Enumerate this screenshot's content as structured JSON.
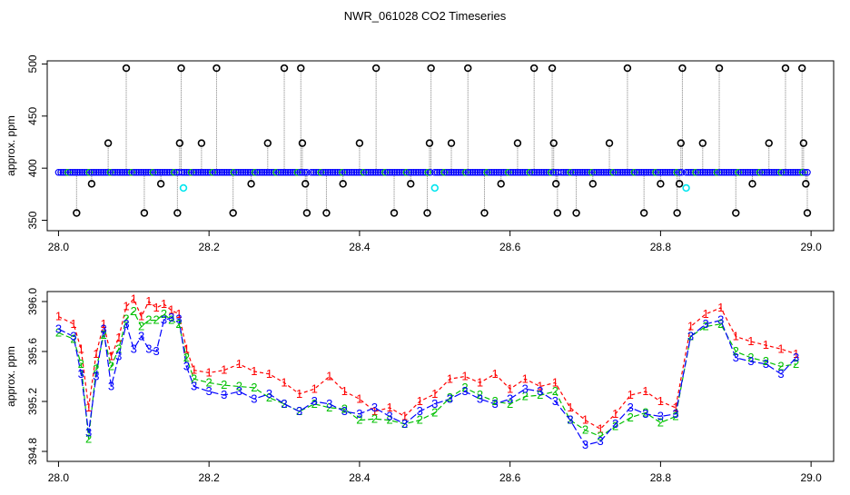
{
  "title": "NWR_061028  CO2 Timeseries",
  "colors": {
    "frame": "#000000",
    "line": "#808080",
    "series1": "#ff0000",
    "series2": "#00c000",
    "series3": "#0000ff",
    "blue_points": "#0000ff",
    "green_points": "#00c000",
    "flag_points": "#000000",
    "cyan_points": "#00e5ee"
  },
  "chart_data": [
    {
      "type": "scatter",
      "title": "NWR_061028  CO2 Timeseries",
      "ylabel": "approx. ppm",
      "xlim": [
        27.985,
        29.03
      ],
      "ylim": [
        340,
        503
      ],
      "xticks": [
        "28.0",
        "28.2",
        "28.4",
        "28.6",
        "28.8",
        "29.0"
      ],
      "yticks": [
        "350",
        "400",
        "450",
        "500"
      ],
      "grid": false,
      "baseline": [
        {
          "x": 28.0,
          "y": 396
        },
        {
          "x": 28.16,
          "y": 396
        },
        {
          "x": 28.164,
          "y": 396
        },
        {
          "x": 28.33,
          "y": 396
        },
        {
          "x": 28.336,
          "y": 396
        },
        {
          "x": 28.494,
          "y": 396
        },
        {
          "x": 28.5,
          "y": 396
        },
        {
          "x": 28.664,
          "y": 396
        },
        {
          "x": 28.668,
          "y": 396
        },
        {
          "x": 28.828,
          "y": 396
        },
        {
          "x": 28.834,
          "y": 396
        },
        {
          "x": 28.995,
          "y": 396
        }
      ],
      "flagged": [
        {
          "x": 28.024,
          "y": 357
        },
        {
          "x": 28.044,
          "y": 385
        },
        {
          "x": 28.066,
          "y": 424
        },
        {
          "x": 28.09,
          "y": 496
        },
        {
          "x": 28.114,
          "y": 357
        },
        {
          "x": 28.136,
          "y": 385
        },
        {
          "x": 28.158,
          "y": 357
        },
        {
          "x": 28.161,
          "y": 424
        },
        {
          "x": 28.163,
          "y": 496
        },
        {
          "x": 28.19,
          "y": 424
        },
        {
          "x": 28.21,
          "y": 496
        },
        {
          "x": 28.232,
          "y": 357
        },
        {
          "x": 28.256,
          "y": 385
        },
        {
          "x": 28.278,
          "y": 424
        },
        {
          "x": 28.3,
          "y": 496
        },
        {
          "x": 28.322,
          "y": 496
        },
        {
          "x": 28.324,
          "y": 424
        },
        {
          "x": 28.328,
          "y": 385
        },
        {
          "x": 28.33,
          "y": 357
        },
        {
          "x": 28.356,
          "y": 357
        },
        {
          "x": 28.378,
          "y": 385
        },
        {
          "x": 28.4,
          "y": 424
        },
        {
          "x": 28.422,
          "y": 496
        },
        {
          "x": 28.446,
          "y": 357
        },
        {
          "x": 28.468,
          "y": 385
        },
        {
          "x": 28.49,
          "y": 357
        },
        {
          "x": 28.493,
          "y": 424
        },
        {
          "x": 28.495,
          "y": 496
        },
        {
          "x": 28.522,
          "y": 424
        },
        {
          "x": 28.544,
          "y": 496
        },
        {
          "x": 28.566,
          "y": 357
        },
        {
          "x": 28.588,
          "y": 385
        },
        {
          "x": 28.61,
          "y": 424
        },
        {
          "x": 28.632,
          "y": 496
        },
        {
          "x": 28.656,
          "y": 496
        },
        {
          "x": 28.658,
          "y": 424
        },
        {
          "x": 28.661,
          "y": 385
        },
        {
          "x": 28.663,
          "y": 357
        },
        {
          "x": 28.688,
          "y": 357
        },
        {
          "x": 28.71,
          "y": 385
        },
        {
          "x": 28.732,
          "y": 424
        },
        {
          "x": 28.756,
          "y": 496
        },
        {
          "x": 28.778,
          "y": 357
        },
        {
          "x": 28.8,
          "y": 385
        },
        {
          "x": 28.822,
          "y": 357
        },
        {
          "x": 28.825,
          "y": 385
        },
        {
          "x": 28.827,
          "y": 424
        },
        {
          "x": 28.829,
          "y": 496
        },
        {
          "x": 28.856,
          "y": 424
        },
        {
          "x": 28.878,
          "y": 496
        },
        {
          "x": 28.9,
          "y": 357
        },
        {
          "x": 28.922,
          "y": 385
        },
        {
          "x": 28.944,
          "y": 424
        },
        {
          "x": 28.966,
          "y": 496
        },
        {
          "x": 28.988,
          "y": 496
        },
        {
          "x": 28.99,
          "y": 424
        },
        {
          "x": 28.993,
          "y": 385
        },
        {
          "x": 28.995,
          "y": 357
        }
      ],
      "cyan": [
        {
          "x": 28.166,
          "y": 381
        },
        {
          "x": 28.5,
          "y": 381
        },
        {
          "x": 28.834,
          "y": 381
        }
      ]
    },
    {
      "type": "line",
      "ylabel": "approx. ppm",
      "xlim": [
        27.985,
        29.03
      ],
      "ylim": [
        394.72,
        396.08
      ],
      "xticks": [
        "28.0",
        "28.2",
        "28.4",
        "28.6",
        "28.8",
        "29.0"
      ],
      "yticks": [
        "394.8",
        "395.2",
        "395.6",
        "396.0"
      ],
      "grid": false,
      "x": [
        28.0,
        28.02,
        28.03,
        28.04,
        28.05,
        28.06,
        28.07,
        28.08,
        28.09,
        28.1,
        28.11,
        28.12,
        28.13,
        28.14,
        28.15,
        28.16,
        28.17,
        28.18,
        28.2,
        28.22,
        28.24,
        28.26,
        28.28,
        28.3,
        28.32,
        28.34,
        28.36,
        28.38,
        28.4,
        28.42,
        28.44,
        28.46,
        28.48,
        28.5,
        28.52,
        28.54,
        28.56,
        28.58,
        28.6,
        28.62,
        28.64,
        28.66,
        28.68,
        28.7,
        28.72,
        28.74,
        28.76,
        28.78,
        28.8,
        28.82,
        28.84,
        28.86,
        28.88,
        28.9,
        28.92,
        28.94,
        28.96,
        28.98
      ],
      "series": [
        {
          "name": "1",
          "values": [
            395.88,
            395.82,
            395.62,
            395.15,
            395.58,
            395.82,
            395.56,
            395.71,
            395.96,
            396.02,
            395.88,
            396.0,
            395.95,
            395.98,
            395.93,
            395.9,
            395.62,
            395.45,
            395.43,
            395.45,
            395.5,
            395.44,
            395.42,
            395.35,
            395.26,
            395.3,
            395.4,
            395.28,
            395.22,
            395.12,
            395.15,
            395.08,
            395.2,
            395.26,
            395.38,
            395.4,
            395.35,
            395.42,
            395.3,
            395.38,
            395.32,
            395.35,
            395.15,
            395.05,
            394.98,
            395.1,
            395.25,
            395.28,
            395.2,
            395.15,
            395.8,
            395.9,
            395.95,
            395.72,
            395.68,
            395.65,
            395.62,
            395.58
          ]
        },
        {
          "name": "2",
          "values": [
            395.75,
            395.7,
            395.5,
            394.9,
            395.46,
            395.73,
            395.48,
            395.62,
            395.86,
            395.92,
            395.8,
            395.85,
            395.85,
            395.9,
            395.85,
            395.82,
            395.55,
            395.38,
            395.35,
            395.33,
            395.32,
            395.31,
            395.23,
            395.18,
            395.12,
            395.18,
            395.15,
            395.14,
            395.05,
            395.06,
            395.05,
            395.02,
            395.05,
            395.11,
            395.23,
            395.31,
            395.25,
            395.2,
            395.18,
            395.24,
            395.25,
            395.28,
            395.05,
            394.97,
            394.92,
            395.0,
            395.07,
            395.11,
            395.03,
            395.08,
            395.72,
            395.8,
            395.82,
            395.6,
            395.55,
            395.52,
            395.48,
            395.5
          ]
        },
        {
          "name": "3",
          "values": [
            395.78,
            395.72,
            395.42,
            394.95,
            395.4,
            395.78,
            395.32,
            395.56,
            395.82,
            395.62,
            395.72,
            395.62,
            395.6,
            395.85,
            395.87,
            395.86,
            395.48,
            395.32,
            395.28,
            395.25,
            395.28,
            395.22,
            395.26,
            395.18,
            395.12,
            395.2,
            395.18,
            395.12,
            395.1,
            395.15,
            395.08,
            395.02,
            395.12,
            395.18,
            395.22,
            395.28,
            395.22,
            395.18,
            395.22,
            395.3,
            395.28,
            395.2,
            395.05,
            394.85,
            394.88,
            395.02,
            395.15,
            395.1,
            395.08,
            395.1,
            395.72,
            395.82,
            395.85,
            395.55,
            395.52,
            395.5,
            395.42,
            395.55
          ]
        }
      ]
    }
  ]
}
